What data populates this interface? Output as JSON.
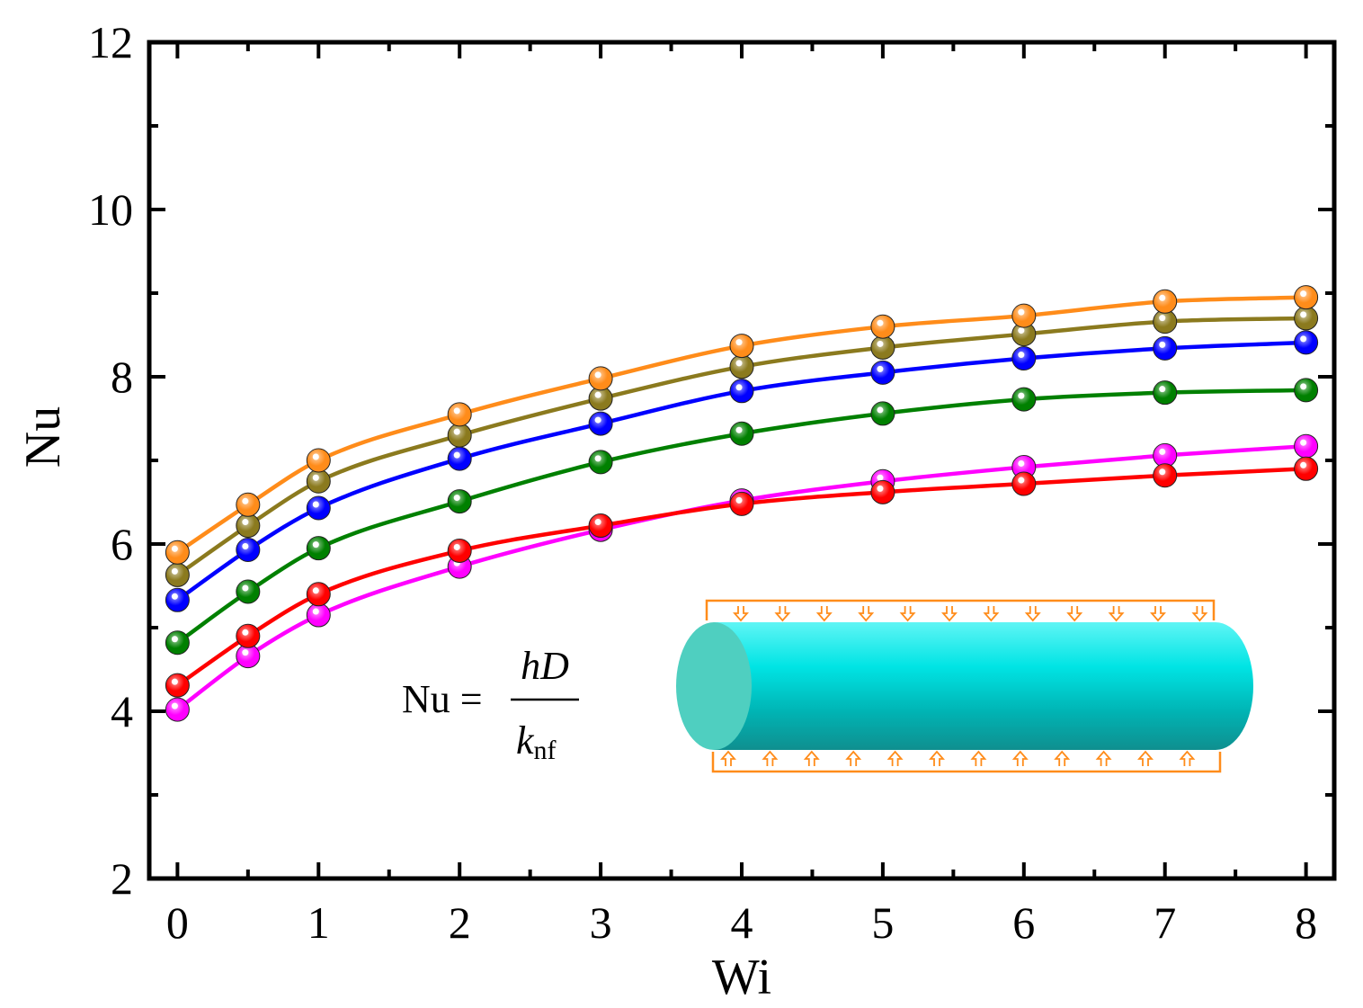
{
  "chart_data": {
    "type": "line",
    "title": "",
    "xlabel": "Wi",
    "ylabel": "Nu",
    "xlim": [
      -0.2,
      8.2
    ],
    "ylim": [
      2,
      12
    ],
    "xticks": [
      "0",
      "1",
      "2",
      "3",
      "4",
      "5",
      "6",
      "7",
      "8"
    ],
    "yticks": [
      "2",
      "4",
      "6",
      "8",
      "10",
      "12"
    ],
    "grid": false,
    "legend": "none",
    "x": [
      0,
      0.5,
      1,
      2,
      3,
      4,
      5,
      6,
      7,
      8
    ],
    "series": [
      {
        "name": "orange",
        "color": "#ff8c1a",
        "values": [
          5.9,
          6.47,
          7.0,
          7.55,
          7.98,
          8.37,
          8.6,
          8.73,
          8.9,
          8.95
        ]
      },
      {
        "name": "olive",
        "color": "#8b7a1e",
        "values": [
          5.63,
          6.22,
          6.75,
          7.3,
          7.74,
          8.12,
          8.35,
          8.51,
          8.66,
          8.7
        ]
      },
      {
        "name": "blue",
        "color": "#0000ff",
        "values": [
          5.33,
          5.93,
          6.43,
          7.02,
          7.44,
          7.83,
          8.05,
          8.22,
          8.34,
          8.41
        ]
      },
      {
        "name": "green",
        "color": "#008000",
        "values": [
          4.82,
          5.43,
          5.95,
          6.51,
          6.98,
          7.32,
          7.56,
          7.73,
          7.81,
          7.84
        ]
      },
      {
        "name": "red",
        "color": "#ff0000",
        "values": [
          4.31,
          4.9,
          5.4,
          5.92,
          6.22,
          6.48,
          6.62,
          6.72,
          6.82,
          6.9
        ]
      },
      {
        "name": "magenta",
        "color": "#ff00ff",
        "values": [
          4.02,
          4.66,
          5.15,
          5.73,
          6.17,
          6.52,
          6.75,
          6.92,
          7.06,
          7.17
        ]
      }
    ],
    "annotation": {
      "formula_lhs": "Nu =",
      "numerator": "hD",
      "denominator_main": "k",
      "denominator_sub": "nf"
    }
  }
}
